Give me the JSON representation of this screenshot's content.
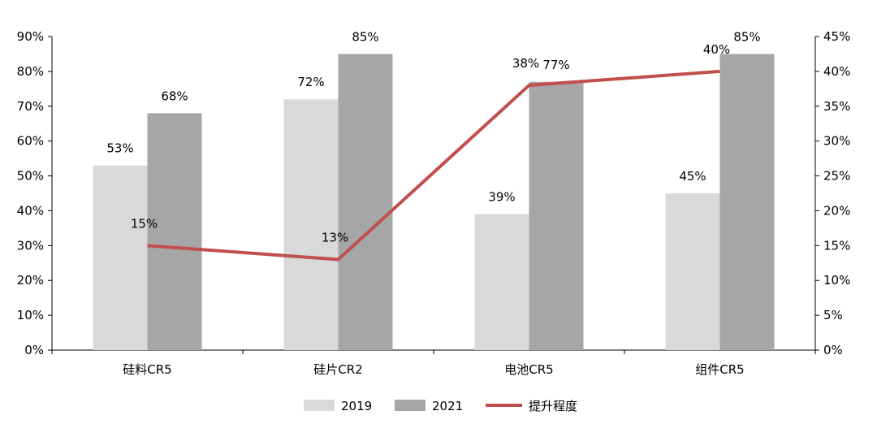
{
  "chart_data": {
    "type": "bar",
    "categories": [
      "硅料CR5",
      "硅片CR2",
      "电池CR5",
      "组件CR5"
    ],
    "series": [
      {
        "name": "2019",
        "type": "bar",
        "axis": "left",
        "values": [
          53,
          72,
          39,
          45
        ],
        "labels": [
          "53%",
          "72%",
          "39%",
          "45%"
        ],
        "color": "#d9d9d9"
      },
      {
        "name": "2021",
        "type": "bar",
        "axis": "left",
        "values": [
          68,
          85,
          77,
          85
        ],
        "labels": [
          "68%",
          "85%",
          "77%",
          "85%"
        ],
        "color": "#a6a6a6"
      },
      {
        "name": "提升程度",
        "type": "line",
        "axis": "right",
        "values": [
          15,
          13,
          38,
          40
        ],
        "labels": [
          "15%",
          "13%",
          "38%",
          "40%"
        ],
        "color": "#c0504d"
      }
    ],
    "left_axis": {
      "ylim": [
        0,
        90
      ],
      "ticks": [
        "0%",
        "10%",
        "20%",
        "30%",
        "40%",
        "50%",
        "60%",
        "70%",
        "80%",
        "90%"
      ]
    },
    "right_axis": {
      "ylim": [
        0,
        45
      ],
      "ticks": [
        "0%",
        "5%",
        "10%",
        "15%",
        "20%",
        "25%",
        "30%",
        "35%",
        "40%",
        "45%"
      ]
    },
    "legend_position": "bottom",
    "grid": false
  }
}
